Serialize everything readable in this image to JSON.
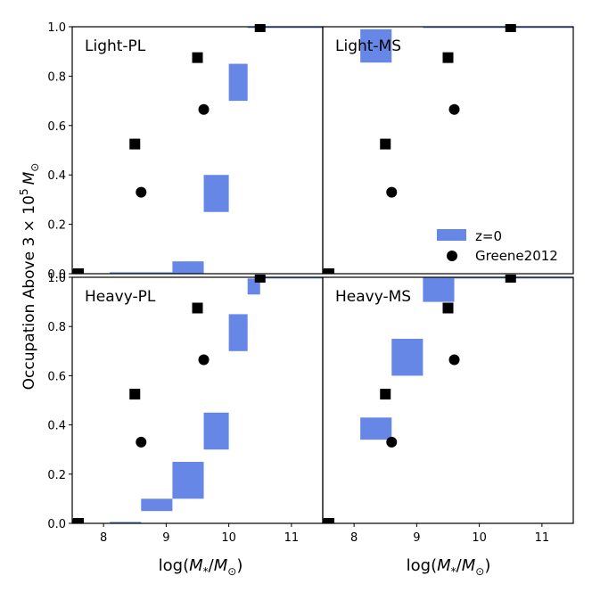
{
  "chart_data": {
    "type": "scatter",
    "x_range": [
      7.5,
      11.5
    ],
    "y_range": [
      0,
      1
    ],
    "xticks": [
      8,
      9,
      10,
      11
    ],
    "yticks": [
      0.0,
      0.2,
      0.4,
      0.6,
      0.8,
      1.0
    ],
    "xtick_labels": [
      "8",
      "9",
      "10",
      "11"
    ],
    "ytick_labels": [
      "0.0",
      "0.2",
      "0.4",
      "0.6",
      "0.8",
      "1.0"
    ],
    "xlabel": "log(M*/M⊙)",
    "xlabel_main": "log(",
    "xlabel_sym": "M",
    "xlabel_sub": "*",
    "xlabel_div": "/",
    "xlabel_sym2": "M",
    "xlabel_sub2": "⊙",
    "xlabel_end": ")",
    "ylabel": "Occupation Above 3×10⁵ M⊙",
    "ylabel_main": "Occupation Above 3 × 10",
    "ylabel_sup": "5",
    "ylabel_sym": "M",
    "ylabel_sub": "⊙",
    "legend": {
      "placement": "lower-right of top-right panel",
      "entries": [
        {
          "label": "z=0",
          "marker": "patch"
        },
        {
          "label": "Greene2012",
          "marker": "circle"
        }
      ]
    },
    "colors": {
      "model_fill": "#4169e1",
      "model_alpha": 0.8,
      "observed": "#000000"
    },
    "observed_circles": [
      {
        "x": 7.55,
        "y": 0.0
      },
      {
        "x": 8.6,
        "y": 0.33
      },
      {
        "x": 9.6,
        "y": 0.665
      },
      {
        "x": 10.5,
        "y": 1.0
      }
    ],
    "observed_squares": [
      {
        "x": 7.6,
        "y": 0.0
      },
      {
        "x": 8.5,
        "y": 0.525
      },
      {
        "x": 9.5,
        "y": 0.875
      },
      {
        "x": 10.5,
        "y": 1.0
      }
    ],
    "panels": [
      {
        "title": "Light-PL",
        "boxes": [
          {
            "x0": 8.1,
            "x1": 9.1,
            "y0": 0.0,
            "y1": 0.005
          },
          {
            "x0": 9.1,
            "x1": 9.6,
            "y0": 0.0,
            "y1": 0.05
          },
          {
            "x0": 9.6,
            "x1": 10.0,
            "y0": 0.25,
            "y1": 0.4
          },
          {
            "x0": 10.0,
            "x1": 10.3,
            "y0": 0.7,
            "y1": 0.85
          },
          {
            "x0": 10.3,
            "x1": 11.5,
            "y0": 0.995,
            "y1": 1.0
          }
        ]
      },
      {
        "title": "Light-MS",
        "boxes": [
          {
            "x0": 8.1,
            "x1": 8.6,
            "y0": 0.855,
            "y1": 0.99
          },
          {
            "x0": 9.1,
            "x1": 11.5,
            "y0": 0.995,
            "y1": 1.0
          }
        ]
      },
      {
        "title": "Heavy-PL",
        "boxes": [
          {
            "x0": 8.1,
            "x1": 8.6,
            "y0": 0.0,
            "y1": 0.005
          },
          {
            "x0": 8.6,
            "x1": 9.1,
            "y0": 0.05,
            "y1": 0.1
          },
          {
            "x0": 9.1,
            "x1": 9.6,
            "y0": 0.1,
            "y1": 0.25
          },
          {
            "x0": 9.6,
            "x1": 10.0,
            "y0": 0.3,
            "y1": 0.45
          },
          {
            "x0": 10.0,
            "x1": 10.3,
            "y0": 0.7,
            "y1": 0.85
          },
          {
            "x0": 10.3,
            "x1": 10.5,
            "y0": 0.93,
            "y1": 0.995
          },
          {
            "x0": 10.5,
            "x1": 11.5,
            "y0": 0.995,
            "y1": 1.0
          }
        ]
      },
      {
        "title": "Heavy-MS",
        "boxes": [
          {
            "x0": 8.1,
            "x1": 8.6,
            "y0": 0.34,
            "y1": 0.43
          },
          {
            "x0": 8.6,
            "x1": 9.1,
            "y0": 0.6,
            "y1": 0.75
          },
          {
            "x0": 9.1,
            "x1": 9.6,
            "y0": 0.9,
            "y1": 1.0
          },
          {
            "x0": 9.6,
            "x1": 11.5,
            "y0": 0.995,
            "y1": 1.0
          }
        ]
      }
    ]
  }
}
